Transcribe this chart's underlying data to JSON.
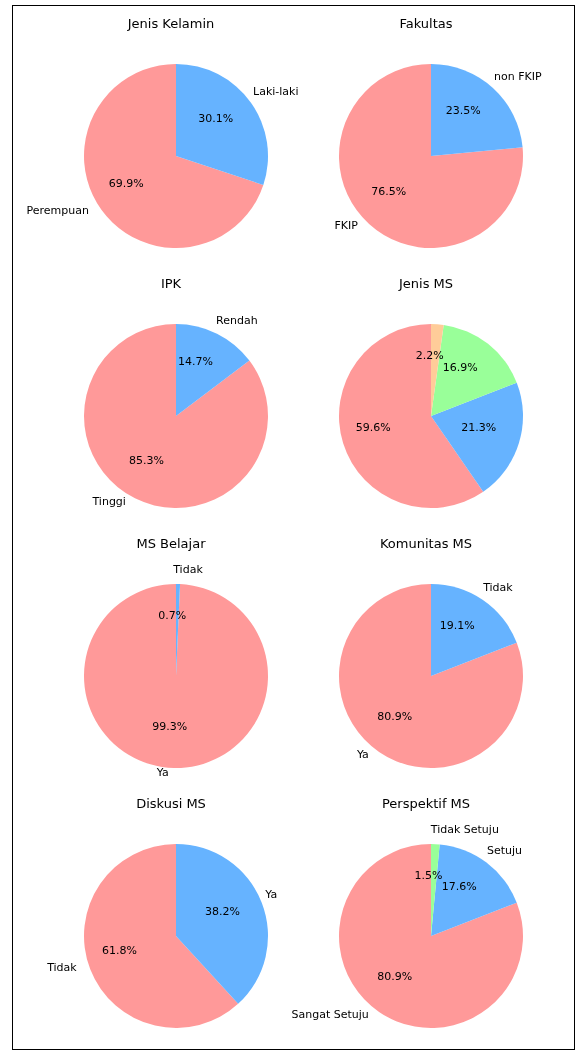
{
  "chart_data": [
    {
      "type": "pie",
      "title": "Jenis Kelamin",
      "categories": [
        "Perempuan",
        "Laki-laki"
      ],
      "values": [
        69.9,
        30.1
      ],
      "value_labels": [
        "69.9%",
        "30.1%"
      ],
      "colors": [
        "#ff9999",
        "#66b3ff"
      ]
    },
    {
      "type": "pie",
      "title": "Fakultas",
      "categories": [
        "FKIP",
        "non FKIP"
      ],
      "values": [
        76.5,
        23.5
      ],
      "value_labels": [
        "76.5%",
        "23.5%"
      ],
      "colors": [
        "#ff9999",
        "#66b3ff"
      ]
    },
    {
      "type": "pie",
      "title": "IPK",
      "categories": [
        "Tinggi",
        "Rendah"
      ],
      "values": [
        85.3,
        14.7
      ],
      "value_labels": [
        "85.3%",
        "14.7%"
      ],
      "colors": [
        "#ff9999",
        "#66b3ff"
      ]
    },
    {
      "type": "pie",
      "title": "Jenis MS",
      "categories": [
        null,
        null,
        null,
        null
      ],
      "values": [
        59.6,
        21.3,
        16.9,
        2.2
      ],
      "value_labels": [
        "59.6%",
        "21.3%",
        "16.9%",
        "2.2%"
      ],
      "colors": [
        "#ff9999",
        "#66b3ff",
        "#99ff99",
        "#ffcc99"
      ]
    },
    {
      "type": "pie",
      "title": "MS Belajar",
      "categories": [
        "Ya",
        "Tidak"
      ],
      "values": [
        99.3,
        0.7
      ],
      "value_labels": [
        "99.3%",
        "0.7%"
      ],
      "colors": [
        "#ff9999",
        "#66b3ff"
      ]
    },
    {
      "type": "pie",
      "title": "Komunitas MS",
      "categories": [
        "Ya",
        "Tidak"
      ],
      "values": [
        80.9,
        19.1
      ],
      "value_labels": [
        "80.9%",
        "19.1%"
      ],
      "colors": [
        "#ff9999",
        "#66b3ff"
      ]
    },
    {
      "type": "pie",
      "title": "Diskusi MS",
      "categories": [
        "Tidak",
        "Ya"
      ],
      "values": [
        61.8,
        38.2
      ],
      "value_labels": [
        "61.8%",
        "38.2%"
      ],
      "colors": [
        "#ff9999",
        "#66b3ff"
      ]
    },
    {
      "type": "pie",
      "title": "Perspektif MS",
      "categories": [
        "Sangat Setuju",
        "Setuju",
        "Tidak Setuju"
      ],
      "values": [
        80.9,
        17.6,
        1.5
      ],
      "value_labels": [
        "80.9%",
        "17.6%",
        "1.5%"
      ],
      "colors": [
        "#ff9999",
        "#66b3ff",
        "#99ff99"
      ]
    }
  ]
}
